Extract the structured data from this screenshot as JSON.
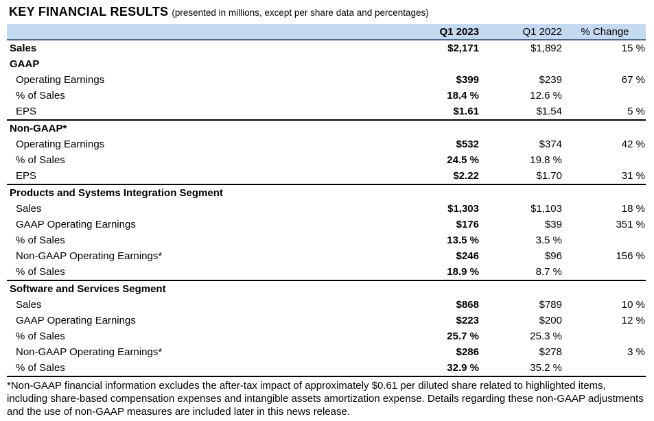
{
  "title": "KEY FINANCIAL RESULTS",
  "subtitle": "(presented in millions, except per share data and percentages)",
  "colors": {
    "header_bg": "#C5D9F1",
    "header_border": "#4a6b8a",
    "section_border": "#000000"
  },
  "table": {
    "columns": {
      "label": "",
      "q1_2023": "Q1 2023",
      "q1_2022": "Q1 2022",
      "change": "% Change"
    },
    "rows": [
      {
        "type": "total",
        "label": "Sales",
        "q1_2023": "$2,171",
        "q1_2022": "$1,892",
        "change": "15 %"
      },
      {
        "type": "section",
        "label": "GAAP",
        "q1_2023": "",
        "q1_2022": "",
        "change": ""
      },
      {
        "type": "item",
        "label": "Operating Earnings",
        "q1_2023": "$399",
        "q1_2022": "$239",
        "change": "67 %"
      },
      {
        "type": "item",
        "label": "% of Sales",
        "q1_2023": "18.4 %",
        "q1_2022": "12.6 %",
        "change": ""
      },
      {
        "type": "item",
        "label": "EPS",
        "q1_2023": "$1.61",
        "q1_2022": "$1.54",
        "change": "5 %",
        "section_end": true
      },
      {
        "type": "section",
        "label": "Non-GAAP*",
        "q1_2023": "",
        "q1_2022": "",
        "change": ""
      },
      {
        "type": "item",
        "label": "Operating Earnings",
        "q1_2023": "$532",
        "q1_2022": "$374",
        "change": "42 %"
      },
      {
        "type": "item",
        "label": "% of Sales",
        "q1_2023": "24.5 %",
        "q1_2022": "19.8 %",
        "change": ""
      },
      {
        "type": "item",
        "label": "EPS",
        "q1_2023": "$2.22",
        "q1_2022": "$1.70",
        "change": "31 %",
        "section_end": true
      },
      {
        "type": "section",
        "label": "Products and Systems Integration Segment",
        "q1_2023": "",
        "q1_2022": "",
        "change": ""
      },
      {
        "type": "item",
        "label": "Sales",
        "q1_2023": "$1,303",
        "q1_2022": "$1,103",
        "change": "18 %"
      },
      {
        "type": "item",
        "label": "GAAP Operating Earnings",
        "q1_2023": "$176",
        "q1_2022": "$39",
        "change": "351 %"
      },
      {
        "type": "item",
        "label": "% of Sales",
        "q1_2023": "13.5 %",
        "q1_2022": "3.5 %",
        "change": ""
      },
      {
        "type": "item",
        "label": "Non-GAAP Operating Earnings*",
        "q1_2023": "$246",
        "q1_2022": "$96",
        "change": "156 %"
      },
      {
        "type": "item",
        "label": "% of Sales",
        "q1_2023": "18.9 %",
        "q1_2022": "8.7 %",
        "change": "",
        "section_end": true
      },
      {
        "type": "section",
        "label": "Software and Services Segment",
        "q1_2023": "",
        "q1_2022": "",
        "change": ""
      },
      {
        "type": "item",
        "label": "Sales",
        "q1_2023": "$868",
        "q1_2022": "$789",
        "change": "10 %"
      },
      {
        "type": "item",
        "label": "GAAP Operating Earnings",
        "q1_2023": "$223",
        "q1_2022": "$200",
        "change": "12 %"
      },
      {
        "type": "item",
        "label": "% of Sales",
        "q1_2023": "25.7 %",
        "q1_2022": "25.3 %",
        "change": ""
      },
      {
        "type": "item",
        "label": "Non-GAAP Operating Earnings*",
        "q1_2023": "$286",
        "q1_2022": "$278",
        "change": "3 %"
      },
      {
        "type": "item",
        "label": "% of Sales",
        "q1_2023": "32.9 %",
        "q1_2022": "35.2 %",
        "change": "",
        "section_end": true
      }
    ]
  },
  "footnote_lines": [
    "*Non-GAAP financial information excludes the after-tax impact of approximately $0.61 per diluted share related to highlighted items,",
    "including share-based compensation expenses and intangible assets amortization expense. Details regarding these non-GAAP adjustments",
    "and the use of non-GAAP measures are included later in this news release."
  ]
}
